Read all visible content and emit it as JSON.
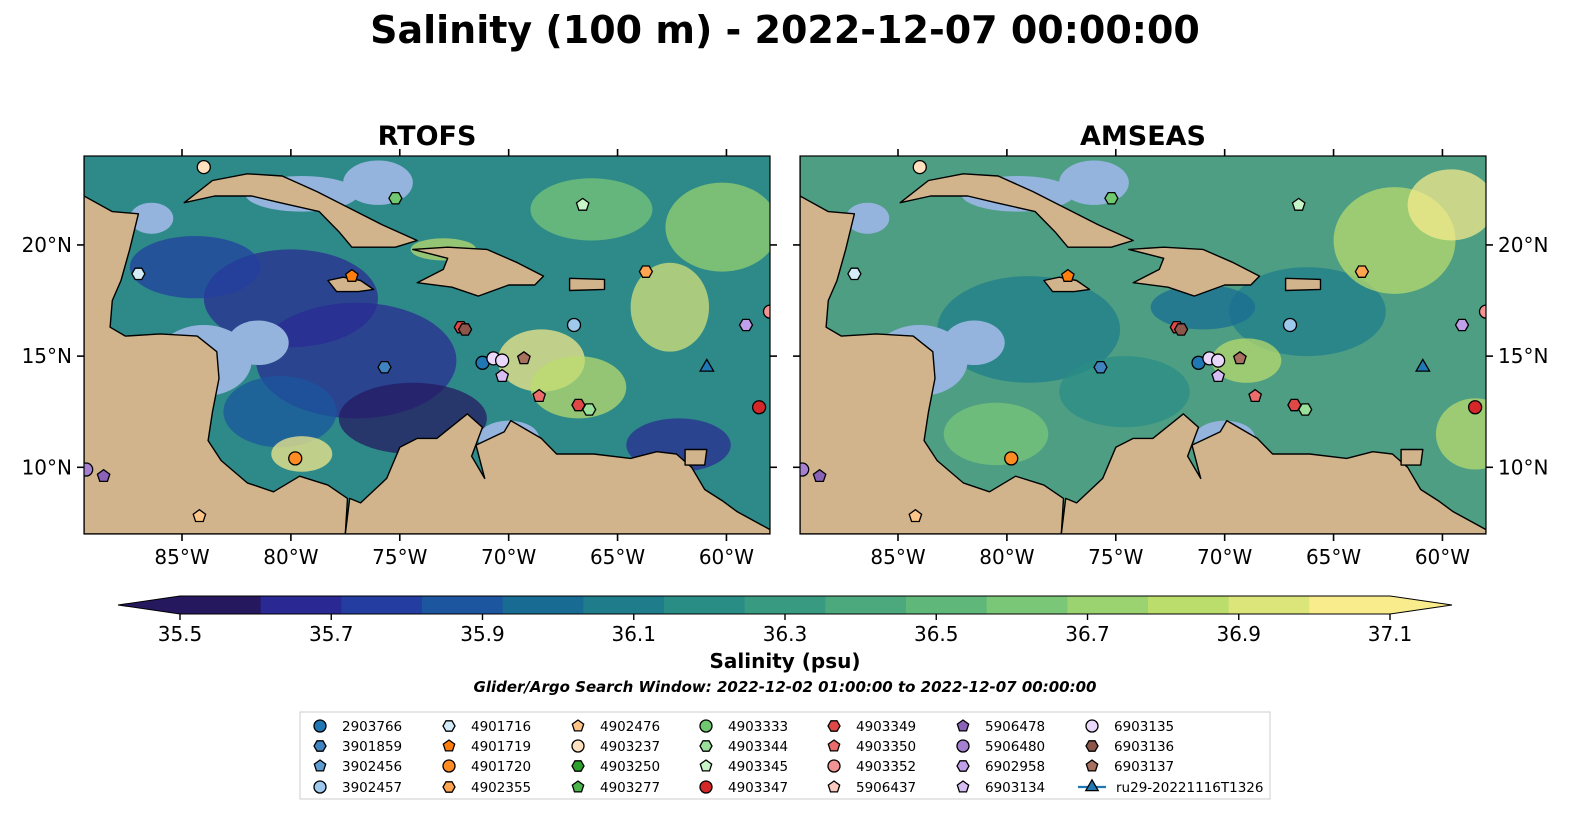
{
  "figure": {
    "title": "Salinity (100 m) - 2022-12-07 00:00:00",
    "search_window": "Glider/Argo Search Window: 2022-12-02 01:00:00 to 2022-12-07 00:00:00"
  },
  "panels": [
    {
      "id": "rtofs",
      "title": "RTOFS",
      "lat_ticks_side": "left",
      "field_tone": "#2e8a88"
    },
    {
      "id": "amseas",
      "title": "AMSEAS",
      "lat_ticks_side": "right",
      "field_tone": "#4e9e84"
    }
  ],
  "map_extent": {
    "lon": [
      -89.5,
      -58.0
    ],
    "lat": [
      7.0,
      24.0
    ]
  },
  "lon_ticks": [
    {
      "value": -85,
      "label": "85°W"
    },
    {
      "value": -80,
      "label": "80°W"
    },
    {
      "value": -75,
      "label": "75°W"
    },
    {
      "value": -70,
      "label": "70°W"
    },
    {
      "value": -65,
      "label": "65°W"
    },
    {
      "value": -60,
      "label": "60°W"
    }
  ],
  "lat_ticks": [
    {
      "value": 10,
      "label": "10°N"
    },
    {
      "value": 15,
      "label": "15°N"
    },
    {
      "value": 20,
      "label": "20°N"
    }
  ],
  "colorbar": {
    "label": "Salinity (psu)",
    "min": 35.5,
    "max": 37.1,
    "extend": "both",
    "ticks": [
      "35.5",
      "35.7",
      "35.9",
      "36.1",
      "36.3",
      "36.5",
      "36.7",
      "36.9",
      "37.1"
    ],
    "colors": [
      "#26185f",
      "#2a2993",
      "#233ea0",
      "#1b569e",
      "#186c93",
      "#1f7d8b",
      "#298d85",
      "#389b81",
      "#4ba97d",
      "#5fb87a",
      "#7ac777",
      "#9ad36f",
      "#bbdd6c",
      "#dbe57a",
      "#f9ec8c"
    ]
  },
  "colors": {
    "land": "#d2b48c",
    "shelf": "#94b4de",
    "coast": "#000000"
  },
  "legend": {
    "items": [
      {
        "label": "2903766",
        "marker": "circle",
        "color": "#1f77b4"
      },
      {
        "label": "3901859",
        "marker": "hexagon",
        "color": "#3f84c0"
      },
      {
        "label": "3902456",
        "marker": "pentagon",
        "color": "#5e9bd1"
      },
      {
        "label": "3902457",
        "marker": "circle",
        "color": "#9ec8ec"
      },
      {
        "label": "4901716",
        "marker": "hexagon",
        "color": "#d3ecf8"
      },
      {
        "label": "4901719",
        "marker": "pentagon",
        "color": "#ff7f0e"
      },
      {
        "label": "4901720",
        "marker": "circle",
        "color": "#ff8c22"
      },
      {
        "label": "4902355",
        "marker": "hexagon",
        "color": "#ffa450"
      },
      {
        "label": "4902476",
        "marker": "pentagon",
        "color": "#ffc488"
      },
      {
        "label": "4903237",
        "marker": "circle",
        "color": "#ffe1c0"
      },
      {
        "label": "4903250",
        "marker": "hexagon",
        "color": "#2ca02c"
      },
      {
        "label": "4903277",
        "marker": "pentagon",
        "color": "#4cb44c"
      },
      {
        "label": "4903333",
        "marker": "circle",
        "color": "#70c870"
      },
      {
        "label": "4903344",
        "marker": "hexagon",
        "color": "#9ae09a"
      },
      {
        "label": "4903345",
        "marker": "pentagon",
        "color": "#c8f5c8"
      },
      {
        "label": "4903347",
        "marker": "circle",
        "color": "#d62728"
      },
      {
        "label": "4903349",
        "marker": "hexagon",
        "color": "#e04848"
      },
      {
        "label": "4903350",
        "marker": "pentagon",
        "color": "#ec6b6b"
      },
      {
        "label": "4903352",
        "marker": "circle",
        "color": "#f29494"
      },
      {
        "label": "5906437",
        "marker": "pentagon",
        "color": "#fbc9c0"
      },
      {
        "label": "5906478",
        "marker": "pentagon",
        "color": "#8a62b8"
      },
      {
        "label": "5906480",
        "marker": "circle",
        "color": "#a57fd0"
      },
      {
        "label": "6902958",
        "marker": "hexagon",
        "color": "#c0a0e8"
      },
      {
        "label": "6903134",
        "marker": "pentagon",
        "color": "#d6bdf4"
      },
      {
        "label": "6903135",
        "marker": "circle",
        "color": "#ead8fb"
      },
      {
        "label": "6903136",
        "marker": "hexagon",
        "color": "#8c564b"
      },
      {
        "label": "6903137",
        "marker": "pentagon",
        "color": "#a8705f"
      },
      {
        "label": "ru29-20221116T1326",
        "marker": "triangle",
        "color": "#1f77b4",
        "line": true
      }
    ]
  },
  "observations": [
    {
      "lon": -84.0,
      "lat": 23.5,
      "marker": "circle",
      "color": "#ffe1c0"
    },
    {
      "lon": -75.2,
      "lat": 22.1,
      "marker": "hexagon",
      "color": "#70c870"
    },
    {
      "lon": -66.6,
      "lat": 21.8,
      "marker": "pentagon",
      "color": "#c8f5c8"
    },
    {
      "lon": -87.0,
      "lat": 18.7,
      "marker": "hexagon",
      "color": "#d3ecf8"
    },
    {
      "lon": -77.2,
      "lat": 18.6,
      "marker": "pentagon",
      "color": "#ff7f0e"
    },
    {
      "lon": -63.7,
      "lat": 18.8,
      "marker": "hexagon",
      "color": "#ffa450"
    },
    {
      "lon": -72.2,
      "lat": 16.3,
      "marker": "hexagon",
      "color": "#e04848"
    },
    {
      "lon": -72.0,
      "lat": 16.2,
      "marker": "hexagon",
      "color": "#8c564b"
    },
    {
      "lon": -67.0,
      "lat": 16.4,
      "marker": "circle",
      "color": "#9ec8ec"
    },
    {
      "lon": -59.1,
      "lat": 16.4,
      "marker": "hexagon",
      "color": "#c0a0e8"
    },
    {
      "lon": -58.0,
      "lat": 17.0,
      "marker": "circle",
      "color": "#f29494"
    },
    {
      "lon": -75.7,
      "lat": 14.5,
      "marker": "hexagon",
      "color": "#3f84c0"
    },
    {
      "lon": -71.2,
      "lat": 14.7,
      "marker": "circle",
      "color": "#1f77b4"
    },
    {
      "lon": -70.7,
      "lat": 14.9,
      "marker": "circle",
      "color": "#ead8fb"
    },
    {
      "lon": -70.3,
      "lat": 14.8,
      "marker": "circle",
      "color": "#ead8fb"
    },
    {
      "lon": -70.3,
      "lat": 14.1,
      "marker": "pentagon",
      "color": "#d6bdf4"
    },
    {
      "lon": -69.3,
      "lat": 14.9,
      "marker": "pentagon",
      "color": "#a8705f"
    },
    {
      "lon": -68.6,
      "lat": 13.2,
      "marker": "pentagon",
      "color": "#ec6b6b"
    },
    {
      "lon": -66.8,
      "lat": 12.8,
      "marker": "hexagon",
      "color": "#e04848"
    },
    {
      "lon": -66.3,
      "lat": 12.6,
      "marker": "hexagon",
      "color": "#9ae09a"
    },
    {
      "lon": -58.5,
      "lat": 12.7,
      "marker": "circle",
      "color": "#d62728"
    },
    {
      "lon": -79.8,
      "lat": 10.4,
      "marker": "circle",
      "color": "#ff8c22"
    },
    {
      "lon": -89.4,
      "lat": 9.9,
      "marker": "circle",
      "color": "#a57fd0"
    },
    {
      "lon": -88.6,
      "lat": 9.6,
      "marker": "pentagon",
      "color": "#8a62b8"
    },
    {
      "lon": -84.2,
      "lat": 7.8,
      "marker": "pentagon",
      "color": "#ffc488"
    },
    {
      "lon": -60.9,
      "lat": 14.5,
      "marker": "triangle",
      "color": "#1f77b4"
    }
  ]
}
